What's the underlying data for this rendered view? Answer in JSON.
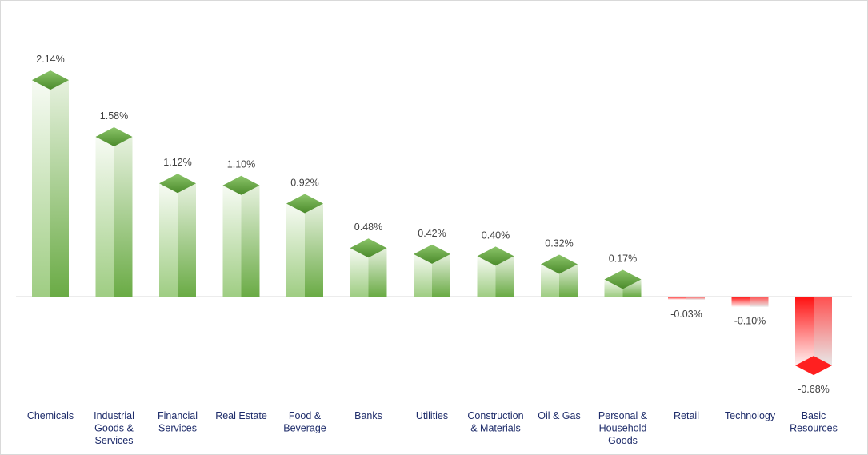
{
  "chart_data": {
    "type": "bar",
    "title": "",
    "xlabel": "",
    "ylabel": "",
    "categories": [
      [
        "Chemicals"
      ],
      [
        "Industrial",
        "Goods &",
        "Services"
      ],
      [
        "Financial",
        "Services"
      ],
      [
        "Real Estate"
      ],
      [
        "Food &",
        "Beverage"
      ],
      [
        "Banks"
      ],
      [
        "Utilities"
      ],
      [
        "Construction",
        "& Materials"
      ],
      [
        "Oil & Gas"
      ],
      [
        "Personal &",
        "Household",
        "Goods"
      ],
      [
        "Retail"
      ],
      [
        "Technology"
      ],
      [
        "Basic",
        "Resources"
      ]
    ],
    "values": [
      2.14,
      1.58,
      1.12,
      1.1,
      0.92,
      0.48,
      0.42,
      0.4,
      0.32,
      0.17,
      -0.03,
      -0.1,
      -0.68
    ],
    "labels": [
      "2.14%",
      "1.58%",
      "1.12%",
      "1.10%",
      "0.92%",
      "0.48%",
      "0.42%",
      "0.40%",
      "0.32%",
      "0.17%",
      "-0.03%",
      "-0.10%",
      "-0.68%"
    ],
    "ylim": [
      -0.68,
      2.14
    ],
    "grid": false,
    "legend": "none",
    "colors": {
      "positive": "#70ad47",
      "negative": "#ff0000"
    }
  }
}
